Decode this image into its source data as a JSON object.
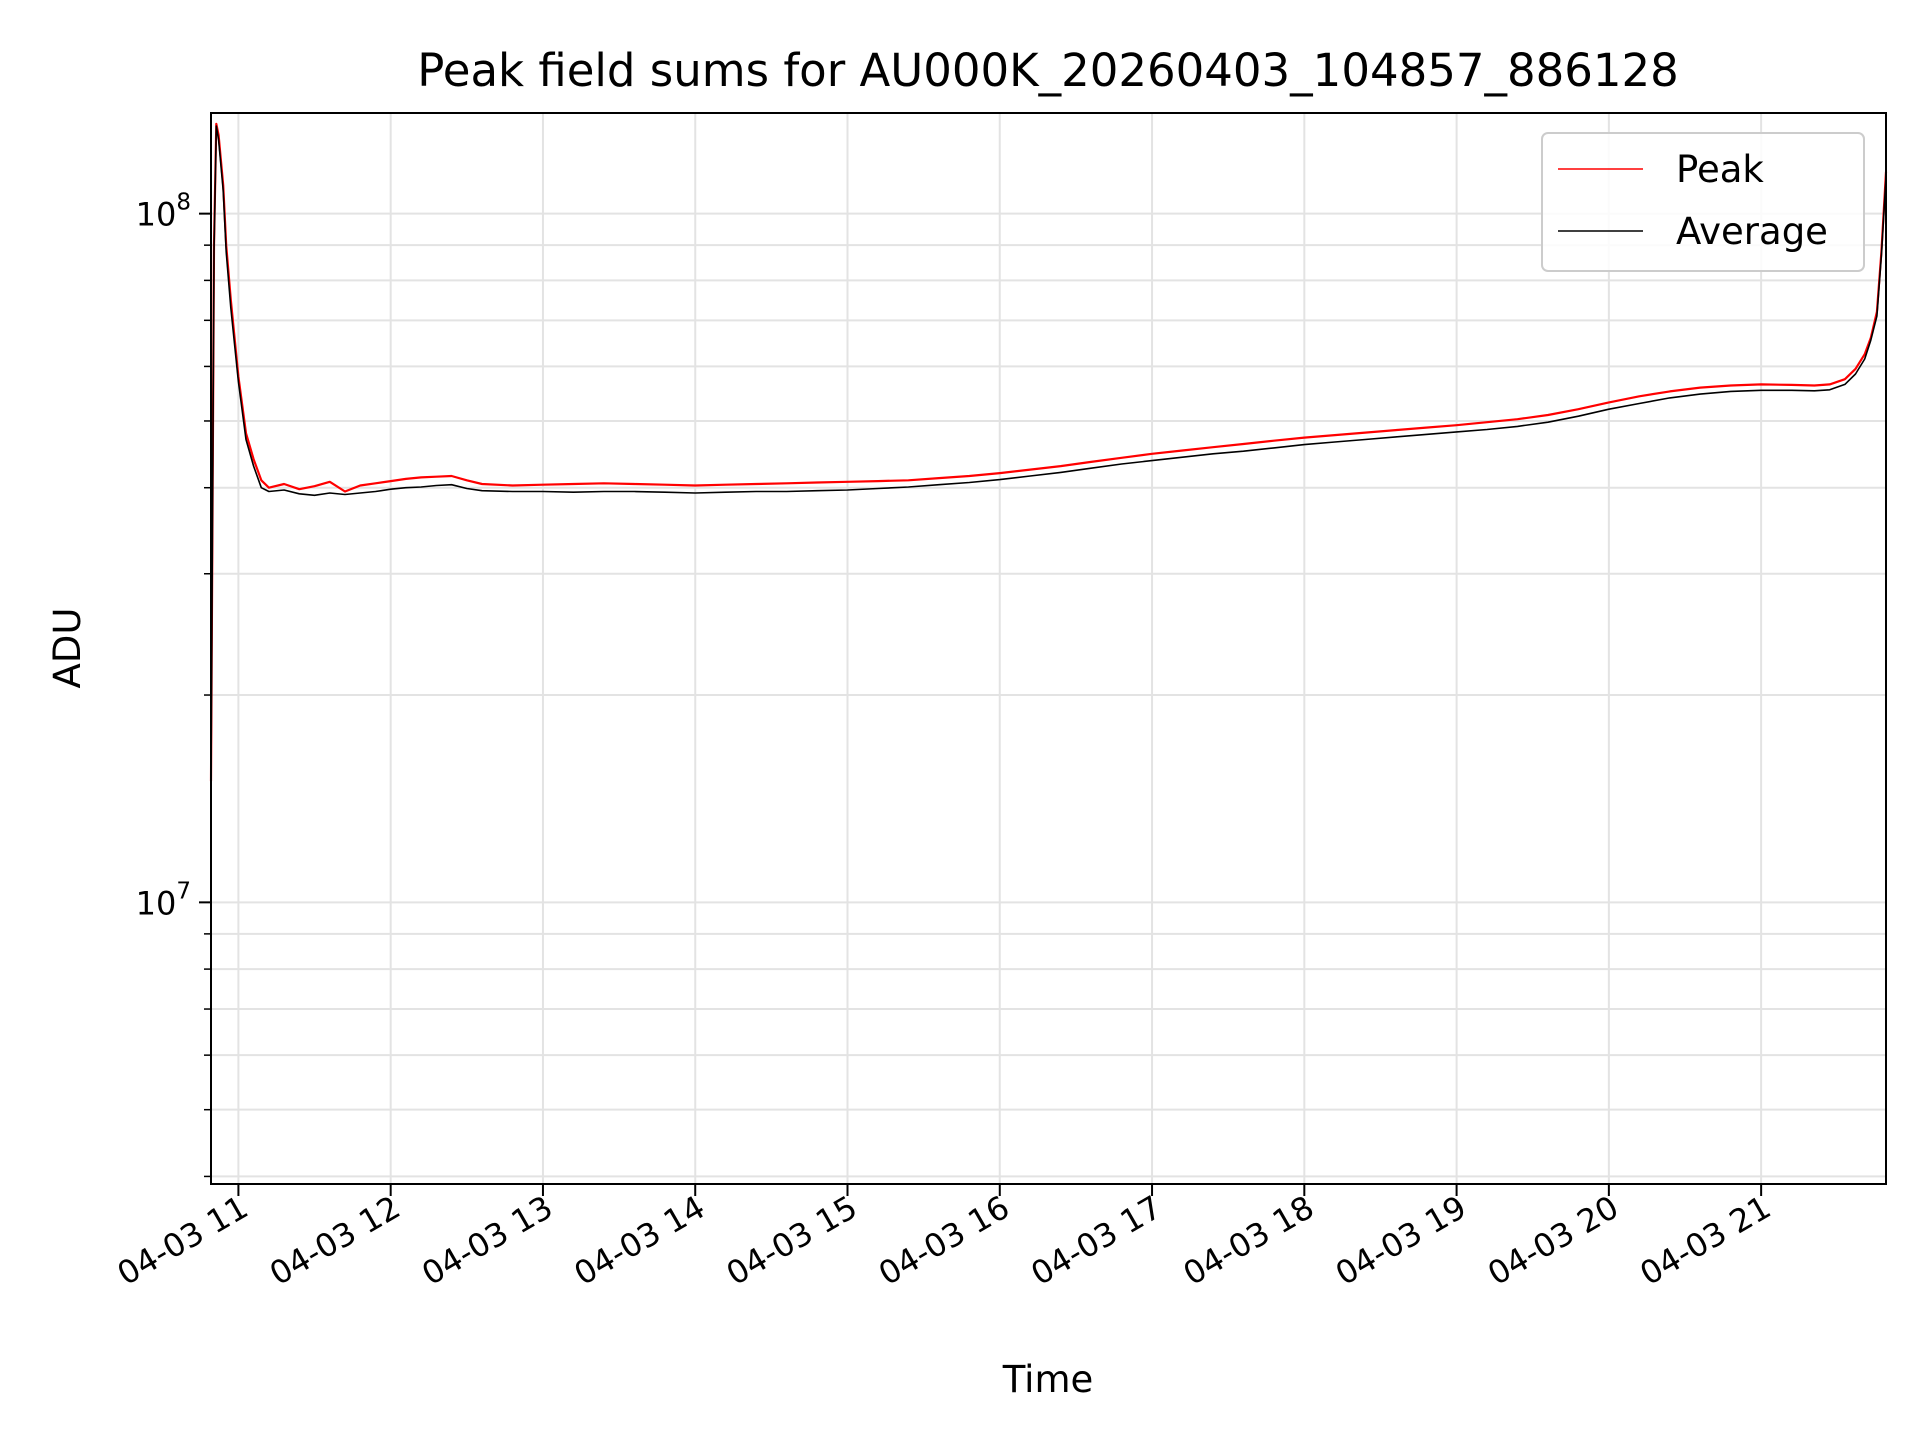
{
  "chart_data": {
    "type": "line",
    "title": "Peak field sums for AU000K_20260403_104857_886128",
    "xlabel": "Time",
    "ylabel": "ADU",
    "x_unit": "hours since 04-03 00:00",
    "xlim": [
      10.82,
      21.82
    ],
    "ylim": [
      3900000,
      140000000
    ],
    "y_scale": "log",
    "grid": true,
    "legend_position": "upper-right",
    "x_tick_values": [
      11,
      12,
      13,
      14,
      15,
      16,
      17,
      18,
      19,
      20,
      21
    ],
    "x_tick_labels": [
      "04-03 11",
      "04-03 12",
      "04-03 13",
      "04-03 14",
      "04-03 15",
      "04-03 16",
      "04-03 17",
      "04-03 18",
      "04-03 19",
      "04-03 20",
      "04-03 21"
    ],
    "y_major_ticks": [
      {
        "value": 10000000,
        "base": "10",
        "exp": "7"
      },
      {
        "value": 100000000,
        "base": "10",
        "exp": "8"
      }
    ],
    "y_minor_ticks": [
      4000000,
      5000000,
      6000000,
      7000000,
      8000000,
      9000000,
      20000000,
      30000000,
      40000000,
      50000000,
      60000000,
      70000000,
      80000000,
      90000000
    ],
    "series": [
      {
        "name": "Peak",
        "color": "#ff0000",
        "x": [
          10.82,
          10.84,
          10.855,
          10.87,
          10.9,
          10.92,
          10.95,
          11.0,
          11.05,
          11.1,
          11.15,
          11.2,
          11.3,
          11.4,
          11.5,
          11.6,
          11.7,
          11.8,
          11.9,
          12.0,
          12.1,
          12.2,
          12.3,
          12.4,
          12.5,
          12.6,
          12.8,
          13.0,
          13.2,
          13.4,
          13.6,
          13.8,
          14.0,
          14.2,
          14.4,
          14.6,
          14.8,
          15.0,
          15.2,
          15.4,
          15.6,
          15.8,
          16.0,
          16.2,
          16.4,
          16.6,
          16.8,
          17.0,
          17.2,
          17.4,
          17.6,
          17.8,
          18.0,
          18.2,
          18.4,
          18.6,
          18.8,
          19.0,
          19.2,
          19.4,
          19.6,
          19.8,
          20.0,
          20.2,
          20.4,
          20.6,
          20.8,
          21.0,
          21.2,
          21.35,
          21.45,
          21.55,
          21.62,
          21.68,
          21.72,
          21.76,
          21.79,
          21.82
        ],
        "values": [
          15000000,
          90000000,
          135000000,
          130000000,
          110000000,
          90000000,
          75000000,
          58000000,
          48000000,
          44000000,
          41000000,
          40000000,
          40500000,
          39800000,
          40200000,
          40800000,
          39500000,
          40300000,
          40600000,
          40900000,
          41200000,
          41400000,
          41500000,
          41600000,
          41000000,
          40500000,
          40300000,
          40400000,
          40500000,
          40600000,
          40500000,
          40400000,
          40300000,
          40400000,
          40500000,
          40600000,
          40700000,
          40800000,
          40900000,
          41000000,
          41300000,
          41600000,
          42000000,
          42500000,
          43000000,
          43600000,
          44200000,
          44800000,
          45300000,
          45800000,
          46300000,
          46800000,
          47300000,
          47700000,
          48100000,
          48500000,
          48900000,
          49300000,
          49800000,
          50300000,
          51000000,
          52000000,
          53200000,
          54300000,
          55200000,
          55900000,
          56300000,
          56500000,
          56400000,
          56300000,
          56500000,
          57500000,
          59500000,
          62500000,
          66000000,
          72000000,
          88000000,
          115000000
        ]
      },
      {
        "name": "Average",
        "color": "#000000",
        "x": [
          10.82,
          10.84,
          10.855,
          10.87,
          10.9,
          10.92,
          10.95,
          11.0,
          11.05,
          11.1,
          11.15,
          11.2,
          11.3,
          11.4,
          11.5,
          11.6,
          11.7,
          11.8,
          11.9,
          12.0,
          12.1,
          12.2,
          12.3,
          12.4,
          12.5,
          12.6,
          12.8,
          13.0,
          13.2,
          13.4,
          13.6,
          13.8,
          14.0,
          14.2,
          14.4,
          14.6,
          14.8,
          15.0,
          15.2,
          15.4,
          15.6,
          15.8,
          16.0,
          16.2,
          16.4,
          16.6,
          16.8,
          17.0,
          17.2,
          17.4,
          17.6,
          17.8,
          18.0,
          18.2,
          18.4,
          18.6,
          18.8,
          19.0,
          19.2,
          19.4,
          19.6,
          19.8,
          20.0,
          20.2,
          20.4,
          20.6,
          20.8,
          21.0,
          21.2,
          21.35,
          21.45,
          21.55,
          21.62,
          21.68,
          21.72,
          21.76,
          21.79,
          21.82
        ],
        "values": [
          15000000,
          88000000,
          134000000,
          128000000,
          108000000,
          88000000,
          73000000,
          57000000,
          47000000,
          43000000,
          40000000,
          39500000,
          39700000,
          39200000,
          39000000,
          39300000,
          39100000,
          39300000,
          39500000,
          39800000,
          40000000,
          40100000,
          40300000,
          40400000,
          39900000,
          39600000,
          39500000,
          39500000,
          39400000,
          39500000,
          39500000,
          39400000,
          39300000,
          39400000,
          39500000,
          39500000,
          39600000,
          39700000,
          39900000,
          40100000,
          40400000,
          40700000,
          41100000,
          41600000,
          42100000,
          42700000,
          43300000,
          43800000,
          44300000,
          44800000,
          45200000,
          45700000,
          46200000,
          46600000,
          47000000,
          47400000,
          47800000,
          48200000,
          48600000,
          49100000,
          49800000,
          50800000,
          52000000,
          53000000,
          54000000,
          54700000,
          55200000,
          55400000,
          55400000,
          55300000,
          55500000,
          56500000,
          58500000,
          61500000,
          65500000,
          71000000,
          87000000,
          113000000
        ]
      }
    ]
  }
}
